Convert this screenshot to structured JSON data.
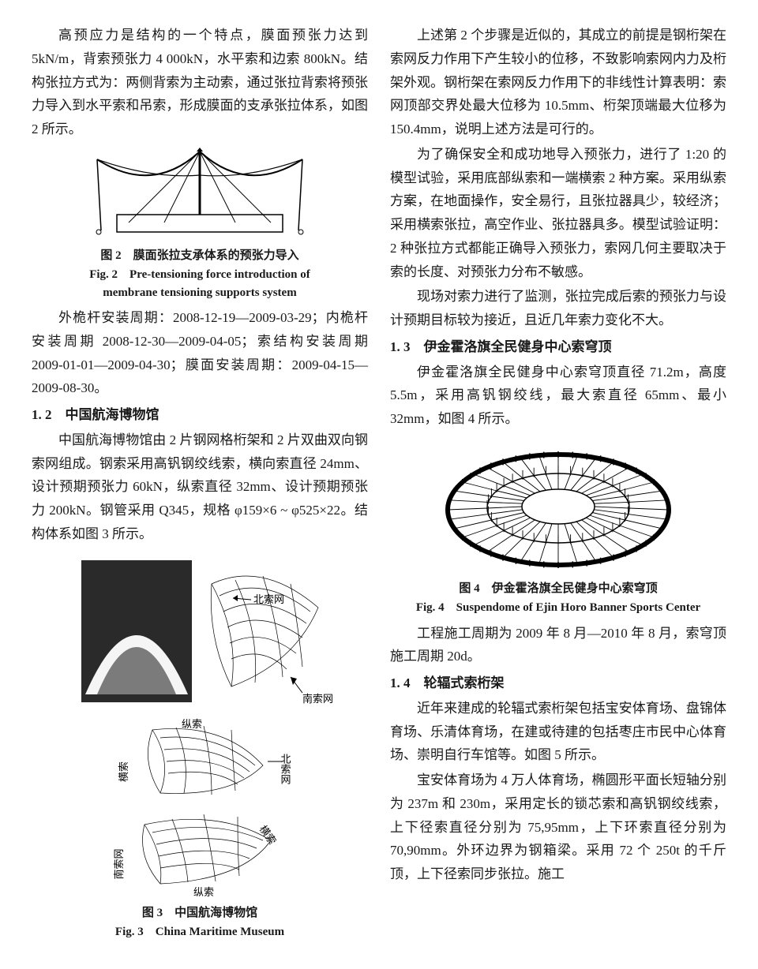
{
  "left": {
    "para1": "高预应力是结构的一个特点，膜面预张力达到5kN/m，背索预张力 4 000kN，水平索和边索 800kN。结构张拉方式为：两侧背索为主动索，通过张拉背索将预张力导入到水平索和吊索，形成膜面的支承张拉体系，如图 2 所示。",
    "fig2": {
      "caption_cn": "图 2　膜面张拉支承体系的预张力导入",
      "caption_en1": "Fig. 2　Pre-tensioning force introduction of",
      "caption_en2": "membrane tensioning supports system",
      "stroke": "#000000",
      "bg": "#ffffff"
    },
    "para2": "外桅杆安装周期：2008-12-19—2009-03-29；内桅杆安装周期 2008-12-30—2009-04-05；索结构安装周期 2009-01-01—2009-04-30；膜面安装周期：2009-04-15—2009-08-30。",
    "sec12_head": "1. 2　中国航海博物馆",
    "para3": "中国航海博物馆由 2 片钢网格桁架和 2 片双曲双向钢索网组成。钢索采用高钒钢绞线索，横向索直径 24mm、设计预期预张力 60kN，纵索直径 32mm、设计预期预张力 200kN。钢管采用 Q345，规格 φ159×6 ~ φ525×22。结构体系如图 3 所示。",
    "fig3": {
      "caption_cn": "图 3　中国航海博物馆",
      "caption_en": "Fig. 3　China Maritime Museum",
      "label_north": "北索网",
      "label_south": "南索网",
      "label_zong": "纵索",
      "label_heng": "横索",
      "stroke": "#000000",
      "fill_dark": "#2a2a2a"
    }
  },
  "right": {
    "para1": "上述第 2 个步骤是近似的，其成立的前提是钢桁架在索网反力作用下产生较小的位移，不致影响索网内力及桁架外观。钢桁架在索网反力作用下的非线性计算表明：索网顶部交界处最大位移为 10.5mm、桁架顶端最大位移为 150.4mm，说明上述方法是可行的。",
    "para2": "为了确保安全和成功地导入预张力，进行了 1:20 的模型试验，采用底部纵索和一端横索 2 种方案。采用纵索方案，在地面操作，安全易行，且张拉器具少，较经济；采用横索张拉，高空作业、张拉器具多。模型试验证明：2 种张拉方式都能正确导入预张力，索网几何主要取决于索的长度、对预张力分布不敏感。",
    "para3": "现场对索力进行了监测，张拉完成后索的预张力与设计预期目标较为接近，且近几年索力变化不大。",
    "sec13_head": "1. 3　伊金霍洛旗全民健身中心索穹顶",
    "para4": "伊金霍洛旗全民健身中心索穹顶直径 71.2m，高度 5.5m，采用高钒钢绞线，最大索直径 65mm、最小 32mm，如图 4 所示。",
    "fig4": {
      "caption_cn": "图 4　伊金霍洛旗全民健身中心索穹顶",
      "caption_en": "Fig. 4　Suspendome of Ejin Horo Banner Sports Center",
      "stroke": "#000000"
    },
    "para5": "工程施工周期为 2009 年 8 月—2010 年 8 月，索穹顶施工周期 20d。",
    "sec14_head": "1. 4　轮辐式索桁架",
    "para6": "近年来建成的轮辐式索桁架包括宝安体育场、盘锦体育场、乐清体育场，在建或待建的包括枣庄市民中心体育场、崇明自行车馆等。如图 5 所示。",
    "para7": "宝安体育场为 4 万人体育场，椭圆形平面长短轴分别为 237m 和 230m，采用定长的锁芯索和高钒钢绞线索，上下径索直径分别为 75,95mm，上下环索直径分别为 70,90mm。外环边界为钢箱梁。采用 72 个 250t 的千斤顶，上下径索同步张拉。施工"
  }
}
